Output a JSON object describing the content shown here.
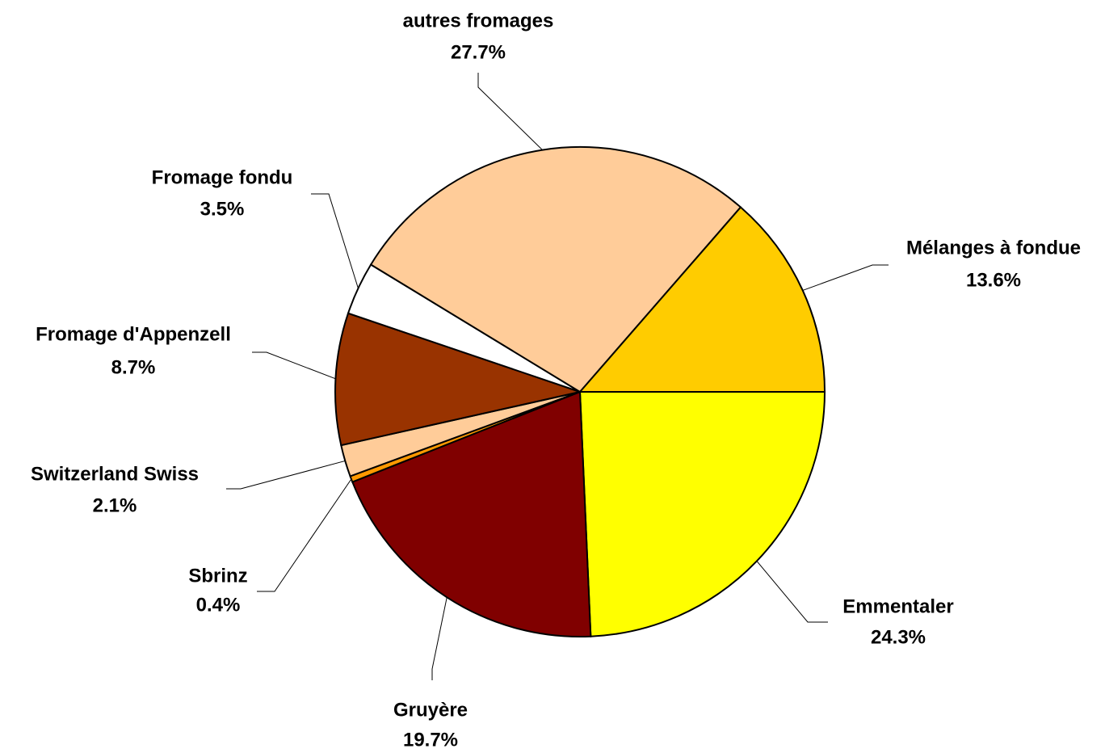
{
  "chart_data": {
    "type": "pie",
    "categories": [
      "Emmentaler",
      "Gruyère",
      "Sbrinz",
      "Switzerland Swiss",
      "Fromage d'Appenzell",
      "Fromage fondu",
      "autres fromages",
      "Mélanges à fondue"
    ],
    "values": [
      24.3,
      19.7,
      0.4,
      2.1,
      8.7,
      3.5,
      27.7,
      13.6
    ],
    "value_labels": [
      "24.3%",
      "19.7%",
      "0.4%",
      "2.1%",
      "8.7%",
      "3.5%",
      "27.7%",
      "13.6%"
    ],
    "colors": [
      "#ffff00",
      "#800000",
      "#ff9900",
      "#ffcc99",
      "#993300",
      "#ffffff",
      "#ffcc99",
      "#ffcc00"
    ]
  }
}
